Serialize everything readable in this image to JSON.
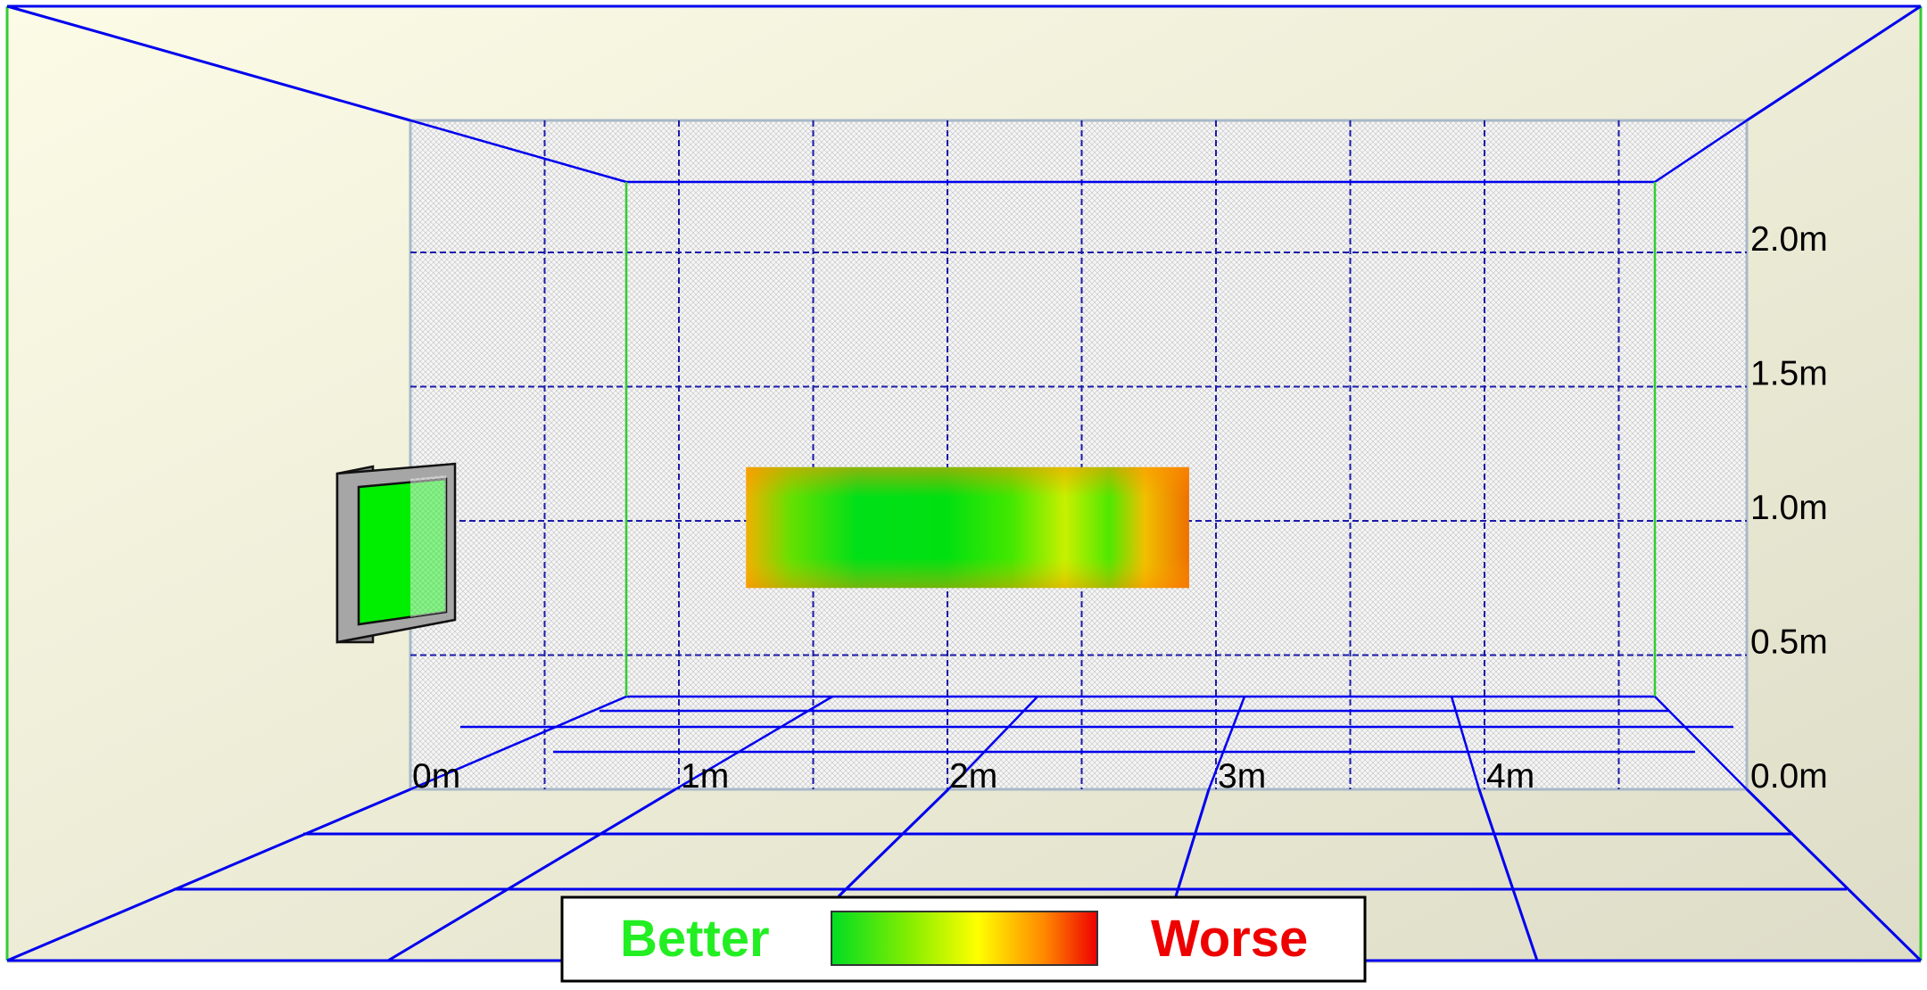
{
  "x_axis": {
    "unit": "m",
    "ticks": [
      {
        "value": 0,
        "label": "0m"
      },
      {
        "value": 1,
        "label": "1m"
      },
      {
        "value": 2,
        "label": "2m"
      },
      {
        "value": 3,
        "label": "3m"
      },
      {
        "value": 4,
        "label": "4m"
      }
    ]
  },
  "y_axis": {
    "unit": "m",
    "ticks": [
      {
        "value": 0.0,
        "label": "0.0m"
      },
      {
        "value": 0.5,
        "label": "0.5m"
      },
      {
        "value": 1.0,
        "label": "1.0m"
      },
      {
        "value": 1.5,
        "label": "1.5m"
      },
      {
        "value": 2.0,
        "label": "2.0m"
      }
    ]
  },
  "legend": {
    "better_label": "Better",
    "worse_label": "Worse",
    "better_color": "#22ee22",
    "worse_color": "#ee0000",
    "gradient_colors": [
      "#00dd22",
      "#88ee00",
      "#ffff00",
      "#ff8800",
      "#ee0000"
    ]
  },
  "heatmap": {
    "x_range_m": [
      1.25,
      2.9
    ],
    "y_range_m": [
      0.75,
      1.2
    ]
  },
  "colors": {
    "wall": "#efefdc",
    "grid_line": "#1a1aaa",
    "edge_line": "#0000ee",
    "corner_line": "#33cc33",
    "speaker_screen": "#00ee00",
    "speaker_frame": "#999999"
  }
}
